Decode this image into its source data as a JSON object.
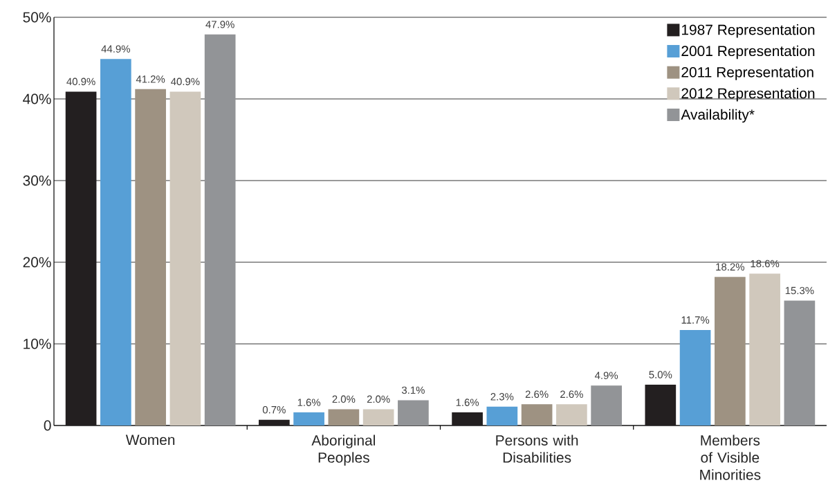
{
  "chart_data": {
    "type": "bar",
    "categories": [
      "Women",
      "Aboriginal Peoples",
      "Persons with Disabilities",
      "Members of Visible Minorities"
    ],
    "series": [
      {
        "name": "1987 Representation",
        "color": "#231f20",
        "values": [
          40.9,
          0.7,
          1.6,
          5.0
        ],
        "value_labels": [
          "40.9%",
          "0.7%",
          "1.6%",
          "5.0%"
        ]
      },
      {
        "name": "2001 Representation",
        "color": "#579fd6",
        "values": [
          44.9,
          1.6,
          2.3,
          11.7
        ],
        "value_labels": [
          "44.9%",
          "1.6%",
          "2.3%",
          "11.7%"
        ]
      },
      {
        "name": "2011 Representation",
        "color": "#9e9282",
        "values": [
          41.2,
          2.0,
          2.6,
          18.2
        ],
        "value_labels": [
          "41.2%",
          "2.0%",
          "2.6%",
          "18.2%"
        ]
      },
      {
        "name": "2012 Representation",
        "color": "#d0c8bc",
        "values": [
          40.9,
          2.0,
          2.6,
          18.6
        ],
        "value_labels": [
          "40.9%",
          "2.0%",
          "2.6%",
          "18.6%"
        ]
      },
      {
        "name": "Availability*",
        "color": "#929497",
        "values": [
          47.9,
          3.1,
          4.9,
          15.3
        ],
        "value_labels": [
          "47.9%",
          "3.1%",
          "4.9%",
          "15.3%"
        ]
      }
    ],
    "ylim": [
      0,
      50
    ],
    "yticks": [
      0,
      {
        "value": 10,
        "label": "10%"
      },
      {
        "value": 20,
        "label": "20%"
      },
      {
        "value": 30,
        "label": "30%"
      },
      {
        "value": 40,
        "label": "40%"
      },
      {
        "value": 50,
        "label": "50%"
      }
    ],
    "grid": "y",
    "legend": "top right"
  }
}
